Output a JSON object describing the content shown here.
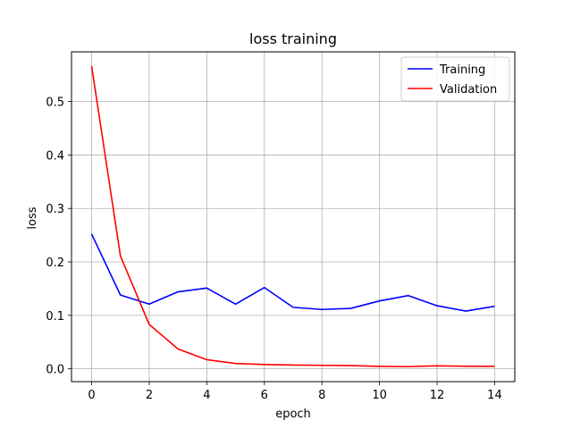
{
  "chart_data": {
    "type": "line",
    "title": "loss training",
    "xlabel": "epoch",
    "ylabel": "loss",
    "x": [
      0,
      1,
      2,
      3,
      4,
      5,
      6,
      7,
      8,
      9,
      10,
      11,
      12,
      13,
      14
    ],
    "series": [
      {
        "name": "Training",
        "color": "#0000ff",
        "values": [
          0.252,
          0.138,
          0.121,
          0.144,
          0.151,
          0.121,
          0.152,
          0.115,
          0.111,
          0.113,
          0.127,
          0.137,
          0.118,
          0.108,
          0.117
        ]
      },
      {
        "name": "Validation",
        "color": "#ff0000",
        "values": [
          0.566,
          0.211,
          0.083,
          0.037,
          0.017,
          0.01,
          0.008,
          0.007,
          0.0065,
          0.006,
          0.0045,
          0.004,
          0.0055,
          0.0048,
          0.0045
        ]
      }
    ],
    "xlim": [
      -0.7,
      14.7
    ],
    "ylim": [
      -0.024,
      0.593
    ],
    "xticks": [
      0,
      2,
      4,
      6,
      8,
      10,
      12,
      14
    ],
    "yticks": [
      0.0,
      0.1,
      0.2,
      0.3,
      0.4,
      0.5
    ],
    "xtick_labels": [
      "0",
      "2",
      "4",
      "6",
      "8",
      "10",
      "12",
      "14"
    ],
    "ytick_labels": [
      "0.0",
      "0.1",
      "0.2",
      "0.3",
      "0.4",
      "0.5"
    ],
    "grid": true,
    "legend_position": "top-right"
  }
}
